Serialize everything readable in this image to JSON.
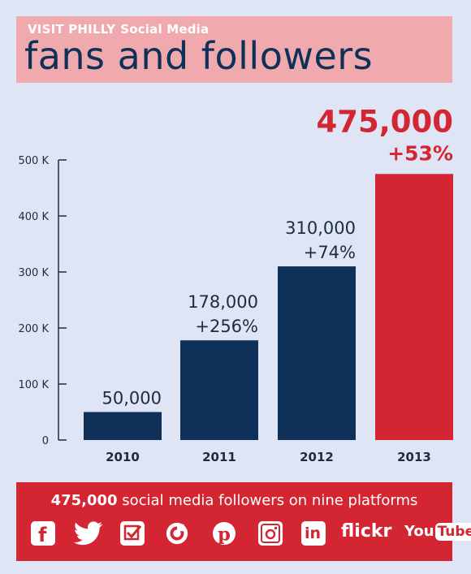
{
  "header": {
    "brand": "VISIT PHILLY",
    "subtitle": "Social Media",
    "title": "fans and followers"
  },
  "chart_data": {
    "type": "bar",
    "categories": [
      "2010",
      "2011",
      "2012",
      "2013"
    ],
    "values": [
      50000,
      178000,
      310000,
      475000
    ],
    "value_labels": [
      "50,000",
      "178,000",
      "310,000",
      "475,000"
    ],
    "change_labels": [
      "",
      "+256%",
      "+74%",
      "+53%"
    ],
    "highlight_index": 3,
    "ylim": [
      0,
      500000
    ],
    "yticks": [
      0,
      100000,
      200000,
      300000,
      400000,
      500000
    ],
    "ytick_labels": [
      "0",
      "100 K",
      "200 K",
      "300 K",
      "400 K",
      "500 K"
    ],
    "colors": {
      "bar": "#0f3059",
      "highlight": "#d42632"
    },
    "grid": false
  },
  "footer": {
    "count": "475,000",
    "text": " social media followers on nine platforms",
    "platforms": [
      "facebook-icon",
      "twitter-icon",
      "foursquare-icon",
      "path-icon",
      "pinterest-icon",
      "instagram-icon",
      "linkedin-icon",
      "flickr-icon",
      "youtube-icon"
    ],
    "flickr_label": "flickr",
    "youtube_label_you": "You",
    "youtube_label_tube": "Tube"
  }
}
